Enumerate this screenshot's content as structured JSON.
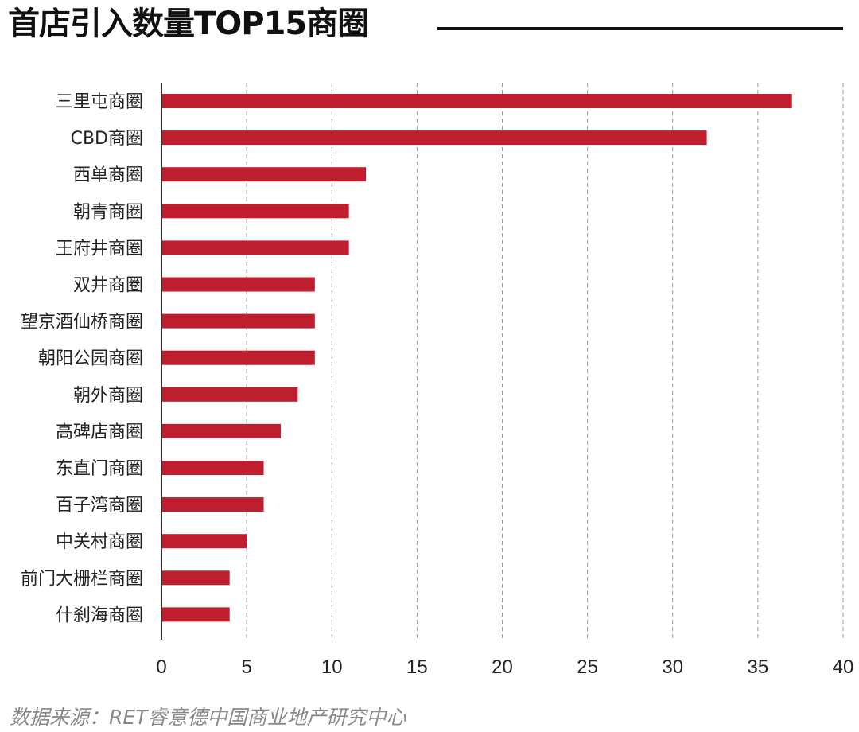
{
  "title": "首店引入数量TOP15商圈",
  "source": "数据来源：RET睿意德中国商业地产研究中心",
  "colors": {
    "bar": "#be1e2d",
    "axis": "#333333",
    "grid": "#999999"
  },
  "chart_data": {
    "type": "bar",
    "orientation": "horizontal",
    "title": "首店引入数量TOP15商圈",
    "categories": [
      "三里屯商圈",
      "CBD商圈",
      "西单商圈",
      "朝青商圈",
      "王府井商圈",
      "双井商圈",
      "望京酒仙桥商圈",
      "朝阳公园商圈",
      "朝外商圈",
      "高碑店商圈",
      "东直门商圈",
      "百子湾商圈",
      "中关村商圈",
      "前门大栅栏商圈",
      "什刹海商圈"
    ],
    "values": [
      37,
      32,
      12,
      11,
      11,
      9,
      9,
      9,
      8,
      7,
      6,
      6,
      5,
      4,
      4
    ],
    "xlim": [
      0,
      40
    ],
    "xticks": [
      "0",
      "5",
      "10",
      "15",
      "20",
      "25",
      "30",
      "35",
      "40"
    ],
    "grid": "vertical dashed",
    "legend": "none"
  }
}
